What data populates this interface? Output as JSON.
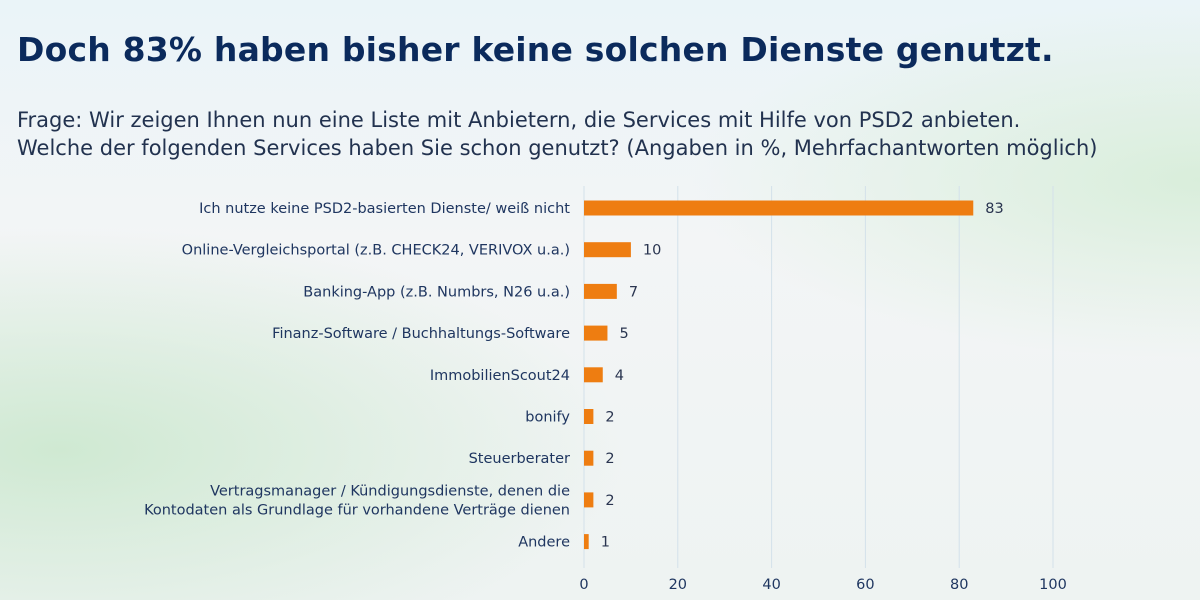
{
  "title": "Doch 83% haben bisher keine solchen Dienste genutzt.",
  "subtitle_lines": [
    "Frage: Wir zeigen Ihnen nun eine Liste mit Anbietern, die Services mit Hilfe von PSD2 anbieten.",
    "Welche der folgenden Services haben Sie schon genutzt? (Angaben in %, Mehrfachantworten möglich)"
  ],
  "chart_data": {
    "type": "bar",
    "orientation": "horizontal",
    "categories": [
      [
        "Ich nutze keine PSD2-basierten Dienste/ weiß nicht"
      ],
      [
        "Online-Vergleichsportal (z.B. CHECK24, VERIVOX u.a.)"
      ],
      [
        "Banking-App (z.B. Numbrs, N26 u.a.)"
      ],
      [
        "Finanz-Software / Buchhaltungs-Software"
      ],
      [
        "ImmobilienScout24"
      ],
      [
        "bonify"
      ],
      [
        "Steuerberater"
      ],
      [
        "Vertragsmanager / Kündigungsdienste, denen die",
        "Kontodaten als Grundlage für vorhandene Verträge dienen"
      ],
      [
        "Andere"
      ]
    ],
    "values": [
      83,
      10,
      7,
      5,
      4,
      2,
      2,
      2,
      1
    ],
    "xlim": [
      0,
      100
    ],
    "xticks": [
      0,
      20,
      40,
      60,
      80,
      100
    ],
    "grid": true,
    "bar_color": "#ee7d11",
    "grid_color": "#d3e1ea"
  }
}
